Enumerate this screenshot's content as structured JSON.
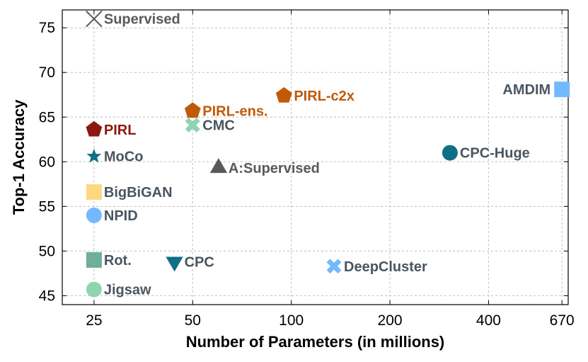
{
  "chart_data": {
    "type": "scatter",
    "xlabel": "Number of Parameters (in millions)",
    "ylabel": "Top-1 Accuracy",
    "x_scale": "log",
    "xlim": [
      20,
      700
    ],
    "ylim": [
      44,
      77
    ],
    "x_ticks": [
      25,
      50,
      100,
      200,
      400,
      670
    ],
    "x_tick_labels": [
      "25",
      "50",
      "100",
      "200",
      "400",
      "670"
    ],
    "y_ticks": [
      45,
      50,
      55,
      60,
      65,
      70,
      75
    ],
    "y_tick_labels": [
      "45",
      "50",
      "55",
      "60",
      "65",
      "70",
      "75"
    ],
    "grid": true,
    "points": [
      {
        "name": "Supervised",
        "x": 25,
        "y": 76,
        "marker": "x",
        "color": "#595959",
        "label_color": "#595959",
        "label_side": "right"
      },
      {
        "name": "AMDIM",
        "x": 670,
        "y": 68.1,
        "marker": "square",
        "color": "#74b9ff",
        "label_color": "#4a5560",
        "label_side": "left"
      },
      {
        "name": "PIRL-c2x",
        "x": 95,
        "y": 67.4,
        "marker": "pentagon",
        "color": "#c05a08",
        "label_color": "#c05a08",
        "label_side": "right"
      },
      {
        "name": "PIRL-ens.",
        "x": 50,
        "y": 65.7,
        "marker": "pentagon",
        "color": "#c05a08",
        "label_color": "#c05a08",
        "label_side": "right"
      },
      {
        "name": "CMC",
        "x": 50,
        "y": 64.1,
        "marker": "x-thick",
        "color": "#8fd4b0",
        "label_color": "#4a5560",
        "label_side": "right"
      },
      {
        "name": "PIRL",
        "x": 25,
        "y": 63.6,
        "marker": "pentagon",
        "color": "#8b1a0e",
        "label_color": "#8b1a0e",
        "label_side": "right"
      },
      {
        "name": "CPC-Huge",
        "x": 305,
        "y": 61.0,
        "marker": "circle",
        "color": "#0f6f85",
        "label_color": "#4a5560",
        "label_side": "right"
      },
      {
        "name": "MoCo",
        "x": 25,
        "y": 60.6,
        "marker": "star",
        "color": "#0f6f85",
        "label_color": "#4a5560",
        "label_side": "right"
      },
      {
        "name": "A:Supervised",
        "x": 60,
        "y": 59.3,
        "marker": "triangle-up",
        "color": "#595959",
        "label_color": "#595959",
        "label_side": "right"
      },
      {
        "name": "BigBiGAN",
        "x": 25,
        "y": 56.6,
        "marker": "square",
        "color": "#fdd882",
        "label_color": "#4a5560",
        "label_side": "right"
      },
      {
        "name": "NPID",
        "x": 25,
        "y": 54.0,
        "marker": "circle",
        "color": "#74b9ff",
        "label_color": "#4a5560",
        "label_side": "right"
      },
      {
        "name": "Rot.",
        "x": 25,
        "y": 49.0,
        "marker": "square",
        "color": "#6fae99",
        "label_color": "#4a5560",
        "label_side": "right"
      },
      {
        "name": "CPC",
        "x": 44,
        "y": 48.8,
        "marker": "triangle-down",
        "color": "#0f6f85",
        "label_color": "#4a5560",
        "label_side": "right"
      },
      {
        "name": "DeepCluster",
        "x": 135,
        "y": 48.3,
        "marker": "x-thick",
        "color": "#74b9ff",
        "label_color": "#4a5560",
        "label_side": "right"
      },
      {
        "name": "Jigsaw",
        "x": 25,
        "y": 45.7,
        "marker": "circle",
        "color": "#8fd4b0",
        "label_color": "#4a5560",
        "label_side": "right"
      }
    ]
  }
}
